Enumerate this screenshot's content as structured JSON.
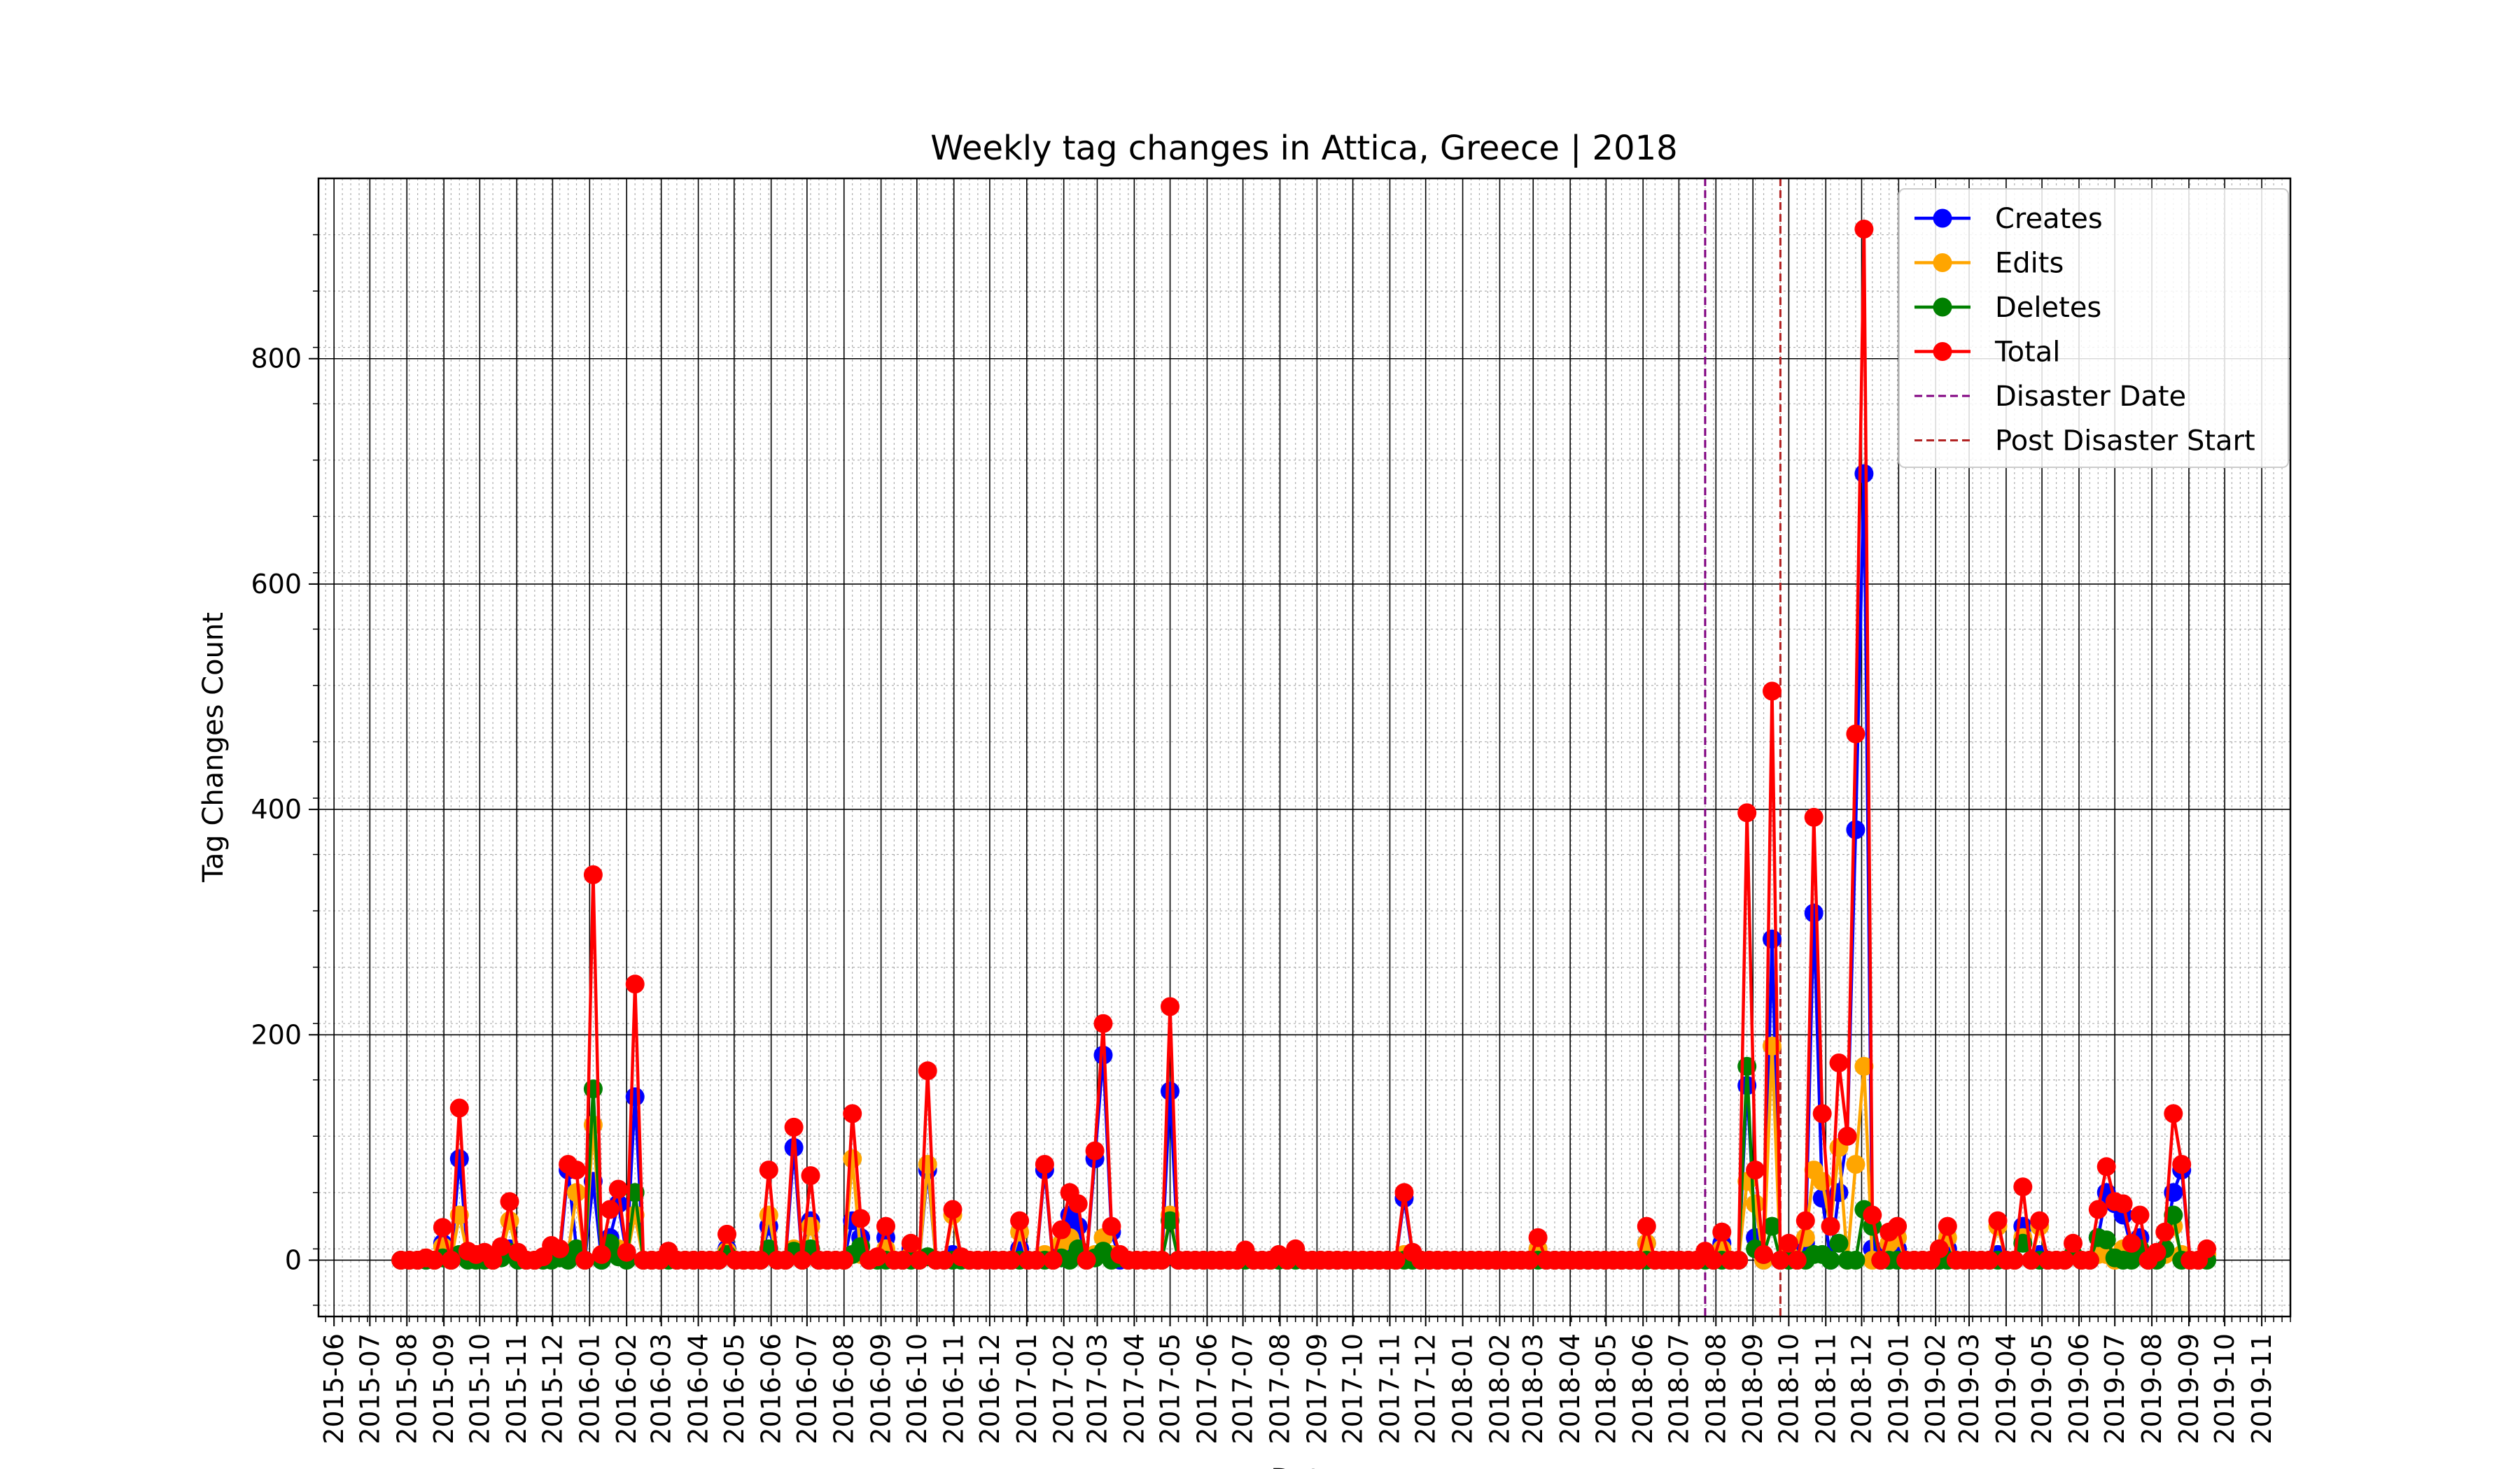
{
  "chart_data": {
    "type": "line",
    "title": "Weekly tag changes in Attica, Greece | 2018",
    "xlabel": "Date",
    "ylabel": "Tag Changes Count",
    "x_range": [
      "2015-05-19",
      "2019-11-25"
    ],
    "ylim": [
      -50,
      960
    ],
    "y_ticks": [
      0,
      200,
      400,
      600,
      800
    ],
    "x_tick_labels": [
      "2015-06",
      "2015-07",
      "2015-08",
      "2015-09",
      "2015-10",
      "2015-11",
      "2015-12",
      "2016-01",
      "2016-02",
      "2016-03",
      "2016-04",
      "2016-05",
      "2016-06",
      "2016-07",
      "2016-08",
      "2016-09",
      "2016-10",
      "2016-11",
      "2016-12",
      "2017-01",
      "2017-02",
      "2017-03",
      "2017-04",
      "2017-05",
      "2017-06",
      "2017-07",
      "2017-08",
      "2017-09",
      "2017-10",
      "2017-11",
      "2017-12",
      "2018-01",
      "2018-02",
      "2018-03",
      "2018-04",
      "2018-05",
      "2018-06",
      "2018-07",
      "2018-08",
      "2018-09",
      "2018-10",
      "2018-11",
      "2018-12",
      "2019-01",
      "2019-02",
      "2019-03",
      "2019-04",
      "2019-05",
      "2019-06",
      "2019-07",
      "2019-08",
      "2019-09",
      "2019-10",
      "2019-11"
    ],
    "grid": true,
    "legend_position": "top-right",
    "vlines": [
      {
        "name": "Disaster Date",
        "x": "2018-07-23",
        "color": "#800080"
      },
      {
        "name": "Post Disaster Start",
        "x": "2018-09-24",
        "color": "#b22222"
      }
    ],
    "series_colors": {
      "Creates": "#0000ff",
      "Edits": "#ffa500",
      "Deletes": "#008000",
      "Total": "#ff0000"
    },
    "series_order": [
      "Creates",
      "Edits",
      "Deletes",
      "Total"
    ],
    "points": [
      [
        "2015-07-27",
        0,
        0,
        0
      ],
      [
        "2015-08-03",
        0,
        0,
        0
      ],
      [
        "2015-08-10",
        0,
        0,
        0
      ],
      [
        "2015-08-17",
        0,
        2,
        0
      ],
      [
        "2015-08-24",
        0,
        0,
        0
      ],
      [
        "2015-08-31",
        15,
        12,
        2
      ],
      [
        "2015-09-07",
        0,
        0,
        0
      ],
      [
        "2015-09-14",
        90,
        40,
        5
      ],
      [
        "2015-09-21",
        5,
        3,
        0
      ],
      [
        "2015-09-28",
        3,
        2,
        0
      ],
      [
        "2015-10-05",
        4,
        3,
        0
      ],
      [
        "2015-10-12",
        0,
        0,
        0
      ],
      [
        "2015-10-19",
        5,
        5,
        2
      ],
      [
        "2015-10-26",
        10,
        35,
        7
      ],
      [
        "2015-11-02",
        5,
        2,
        0
      ],
      [
        "2015-11-09",
        0,
        0,
        0
      ],
      [
        "2015-11-16",
        0,
        0,
        0
      ],
      [
        "2015-11-23",
        2,
        1,
        0
      ],
      [
        "2015-11-30",
        8,
        5,
        0
      ],
      [
        "2015-12-07",
        5,
        3,
        2
      ],
      [
        "2015-12-14",
        80,
        5,
        0
      ],
      [
        "2015-12-21",
        10,
        60,
        10
      ],
      [
        "2015-12-28",
        0,
        0,
        0
      ],
      [
        "2016-01-04",
        70,
        120,
        152
      ],
      [
        "2016-01-11",
        0,
        5,
        0
      ],
      [
        "2016-01-18",
        20,
        10,
        15
      ],
      [
        "2016-01-25",
        50,
        10,
        3
      ],
      [
        "2016-02-01",
        5,
        2,
        0
      ],
      [
        "2016-02-08",
        145,
        40,
        60
      ],
      [
        "2016-02-15",
        0,
        0,
        0
      ],
      [
        "2016-02-22",
        0,
        0,
        0
      ],
      [
        "2016-02-29",
        0,
        0,
        0
      ],
      [
        "2016-03-07",
        5,
        3,
        0
      ],
      [
        "2016-03-14",
        0,
        0,
        0
      ],
      [
        "2016-03-21",
        0,
        0,
        0
      ],
      [
        "2016-03-28",
        0,
        0,
        0
      ],
      [
        "2016-04-04",
        0,
        0,
        0
      ],
      [
        "2016-04-11",
        0,
        0,
        0
      ],
      [
        "2016-04-18",
        0,
        0,
        0
      ],
      [
        "2016-04-25",
        10,
        8,
        5
      ],
      [
        "2016-05-02",
        0,
        0,
        0
      ],
      [
        "2016-05-09",
        0,
        0,
        0
      ],
      [
        "2016-05-16",
        0,
        0,
        0
      ],
      [
        "2016-05-23",
        0,
        0,
        0
      ],
      [
        "2016-05-30",
        30,
        40,
        10
      ],
      [
        "2016-06-06",
        0,
        0,
        0
      ],
      [
        "2016-06-13",
        0,
        0,
        0
      ],
      [
        "2016-06-20",
        100,
        10,
        8
      ],
      [
        "2016-06-27",
        0,
        0,
        0
      ],
      [
        "2016-07-04",
        35,
        30,
        10
      ],
      [
        "2016-07-11",
        0,
        0,
        0
      ],
      [
        "2016-07-18",
        0,
        0,
        0
      ],
      [
        "2016-07-25",
        0,
        0,
        0
      ],
      [
        "2016-08-01",
        0,
        0,
        0
      ],
      [
        "2016-08-08",
        35,
        90,
        5
      ],
      [
        "2016-08-15",
        20,
        5,
        12
      ],
      [
        "2016-08-22",
        0,
        0,
        0
      ],
      [
        "2016-08-29",
        2,
        1,
        0
      ],
      [
        "2016-09-05",
        20,
        10,
        0
      ],
      [
        "2016-09-12",
        0,
        0,
        0
      ],
      [
        "2016-09-19",
        0,
        0,
        0
      ],
      [
        "2016-09-26",
        10,
        5,
        0
      ],
      [
        "2016-10-03",
        0,
        0,
        0
      ],
      [
        "2016-10-10",
        80,
        85,
        3
      ],
      [
        "2016-10-17",
        0,
        0,
        0
      ],
      [
        "2016-10-24",
        0,
        0,
        0
      ],
      [
        "2016-10-31",
        5,
        40,
        0
      ],
      [
        "2016-11-07",
        2,
        1,
        0
      ],
      [
        "2016-11-14",
        0,
        0,
        0
      ],
      [
        "2016-11-21",
        0,
        0,
        0
      ],
      [
        "2016-11-28",
        0,
        0,
        0
      ],
      [
        "2016-12-05",
        0,
        0,
        0
      ],
      [
        "2016-12-12",
        0,
        0,
        0
      ],
      [
        "2016-12-19",
        0,
        0,
        0
      ],
      [
        "2016-12-26",
        10,
        25,
        0
      ],
      [
        "2017-01-02",
        0,
        0,
        0
      ],
      [
        "2017-01-09",
        0,
        0,
        0
      ],
      [
        "2017-01-16",
        80,
        5,
        0
      ],
      [
        "2017-01-23",
        0,
        0,
        0
      ],
      [
        "2017-01-30",
        10,
        15,
        2
      ],
      [
        "2017-02-06",
        40,
        20,
        0
      ],
      [
        "2017-02-13",
        30,
        10,
        10
      ],
      [
        "2017-02-20",
        0,
        0,
        0
      ],
      [
        "2017-02-27",
        90,
        5,
        2
      ],
      [
        "2017-03-06",
        182,
        20,
        8
      ],
      [
        "2017-03-13",
        25,
        5,
        0
      ],
      [
        "2017-03-20",
        0,
        3,
        2
      ],
      [
        "2017-03-27",
        0,
        0,
        0
      ],
      [
        "2017-04-03",
        0,
        0,
        0
      ],
      [
        "2017-04-10",
        0,
        0,
        0
      ],
      [
        "2017-04-17",
        0,
        0,
        0
      ],
      [
        "2017-04-24",
        0,
        0,
        0
      ],
      [
        "2017-05-01",
        150,
        40,
        35
      ],
      [
        "2017-05-08",
        0,
        0,
        0
      ],
      [
        "2017-05-15",
        0,
        0,
        0
      ],
      [
        "2017-05-22",
        0,
        0,
        0
      ],
      [
        "2017-05-29",
        0,
        0,
        0
      ],
      [
        "2017-06-05",
        0,
        0,
        0
      ],
      [
        "2017-06-12",
        0,
        0,
        0
      ],
      [
        "2017-06-19",
        0,
        0,
        0
      ],
      [
        "2017-06-26",
        0,
        0,
        0
      ],
      [
        "2017-07-03",
        5,
        4,
        0
      ],
      [
        "2017-07-10",
        0,
        0,
        0
      ],
      [
        "2017-07-17",
        0,
        0,
        0
      ],
      [
        "2017-07-24",
        0,
        0,
        0
      ],
      [
        "2017-07-31",
        3,
        2,
        0
      ],
      [
        "2017-08-07",
        0,
        0,
        0
      ],
      [
        "2017-08-14",
        5,
        5,
        0
      ],
      [
        "2017-08-21",
        0,
        0,
        0
      ],
      [
        "2017-08-28",
        0,
        0,
        0
      ],
      [
        "2017-09-04",
        0,
        0,
        0
      ],
      [
        "2017-09-11",
        0,
        0,
        0
      ],
      [
        "2017-09-18",
        0,
        0,
        0
      ],
      [
        "2017-09-25",
        0,
        0,
        0
      ],
      [
        "2017-10-02",
        0,
        0,
        0
      ],
      [
        "2017-10-09",
        0,
        0,
        0
      ],
      [
        "2017-10-16",
        0,
        0,
        0
      ],
      [
        "2017-10-23",
        0,
        0,
        0
      ],
      [
        "2017-10-30",
        0,
        0,
        0
      ],
      [
        "2017-11-06",
        0,
        0,
        0
      ],
      [
        "2017-11-13",
        55,
        5,
        0
      ],
      [
        "2017-11-20",
        5,
        2,
        0
      ],
      [
        "2017-11-27",
        0,
        0,
        0
      ],
      [
        "2017-12-04",
        0,
        0,
        0
      ],
      [
        "2017-12-11",
        0,
        0,
        0
      ],
      [
        "2017-12-18",
        0,
        0,
        0
      ],
      [
        "2017-12-25",
        0,
        0,
        0
      ],
      [
        "2018-01-01",
        0,
        0,
        0
      ],
      [
        "2018-01-08",
        0,
        0,
        0
      ],
      [
        "2018-01-15",
        0,
        0,
        0
      ],
      [
        "2018-01-22",
        0,
        0,
        0
      ],
      [
        "2018-01-29",
        0,
        0,
        0
      ],
      [
        "2018-02-05",
        0,
        0,
        0
      ],
      [
        "2018-02-12",
        0,
        0,
        0
      ],
      [
        "2018-02-19",
        0,
        0,
        0
      ],
      [
        "2018-02-26",
        0,
        0,
        0
      ],
      [
        "2018-03-05",
        10,
        10,
        0
      ],
      [
        "2018-03-12",
        0,
        0,
        0
      ],
      [
        "2018-03-19",
        0,
        0,
        0
      ],
      [
        "2018-03-26",
        0,
        0,
        0
      ],
      [
        "2018-04-02",
        0,
        0,
        0
      ],
      [
        "2018-04-09",
        0,
        0,
        0
      ],
      [
        "2018-04-16",
        0,
        0,
        0
      ],
      [
        "2018-04-23",
        0,
        0,
        0
      ],
      [
        "2018-04-30",
        0,
        0,
        0
      ],
      [
        "2018-05-07",
        0,
        0,
        0
      ],
      [
        "2018-05-14",
        0,
        0,
        0
      ],
      [
        "2018-05-21",
        0,
        0,
        0
      ],
      [
        "2018-05-28",
        0,
        0,
        0
      ],
      [
        "2018-06-04",
        15,
        15,
        0
      ],
      [
        "2018-06-11",
        0,
        0,
        0
      ],
      [
        "2018-06-18",
        0,
        0,
        0
      ],
      [
        "2018-06-25",
        0,
        0,
        0
      ],
      [
        "2018-07-02",
        0,
        0,
        0
      ],
      [
        "2018-07-09",
        0,
        0,
        0
      ],
      [
        "2018-07-16",
        0,
        0,
        0
      ],
      [
        "2018-07-23",
        5,
        3,
        0
      ],
      [
        "2018-07-30",
        0,
        0,
        0
      ],
      [
        "2018-08-06",
        15,
        10,
        0
      ],
      [
        "2018-08-13",
        0,
        0,
        0
      ],
      [
        "2018-08-20",
        0,
        0,
        0
      ],
      [
        "2018-08-27",
        155,
        70,
        172
      ],
      [
        "2018-09-03",
        20,
        50,
        10
      ],
      [
        "2018-09-10",
        0,
        0,
        5
      ],
      [
        "2018-09-17",
        285,
        190,
        30
      ],
      [
        "2018-09-24",
        0,
        0,
        0
      ],
      [
        "2018-10-01",
        10,
        5,
        0
      ],
      [
        "2018-10-08",
        0,
        0,
        0
      ],
      [
        "2018-10-15",
        15,
        20,
        0
      ],
      [
        "2018-10-22",
        308,
        80,
        5
      ],
      [
        "2018-10-29",
        55,
        70,
        5
      ],
      [
        "2018-11-05",
        0,
        30,
        0
      ],
      [
        "2018-11-12",
        60,
        100,
        15
      ],
      [
        "2018-11-19",
        110,
        0,
        0
      ],
      [
        "2018-11-26",
        382,
        85,
        0
      ],
      [
        "2018-12-03",
        698,
        172,
        45
      ],
      [
        "2018-12-10",
        10,
        0,
        30
      ],
      [
        "2018-12-17",
        0,
        0,
        0
      ],
      [
        "2018-12-24",
        10,
        15,
        0
      ],
      [
        "2018-12-31",
        10,
        20,
        0
      ],
      [
        "2019-01-07",
        0,
        0,
        0
      ],
      [
        "2019-01-14",
        0,
        0,
        0
      ],
      [
        "2019-01-21",
        0,
        0,
        0
      ],
      [
        "2019-01-28",
        0,
        0,
        0
      ],
      [
        "2019-02-04",
        0,
        10,
        0
      ],
      [
        "2019-02-11",
        10,
        20,
        0
      ],
      [
        "2019-02-18",
        0,
        0,
        0
      ],
      [
        "2019-02-25",
        0,
        0,
        0
      ],
      [
        "2019-03-04",
        0,
        0,
        0
      ],
      [
        "2019-03-11",
        0,
        0,
        0
      ],
      [
        "2019-03-18",
        0,
        0,
        0
      ],
      [
        "2019-03-25",
        5,
        30,
        0
      ],
      [
        "2019-04-01",
        0,
        0,
        0
      ],
      [
        "2019-04-08",
        0,
        0,
        0
      ],
      [
        "2019-04-15",
        30,
        20,
        15
      ],
      [
        "2019-04-22",
        0,
        0,
        0
      ],
      [
        "2019-04-29",
        5,
        30,
        0
      ],
      [
        "2019-05-06",
        0,
        0,
        0
      ],
      [
        "2019-05-13",
        0,
        0,
        0
      ],
      [
        "2019-05-20",
        0,
        0,
        0
      ],
      [
        "2019-05-27",
        5,
        5,
        5
      ],
      [
        "2019-06-03",
        0,
        0,
        0
      ],
      [
        "2019-06-10",
        0,
        0,
        0
      ],
      [
        "2019-06-17",
        20,
        5,
        20
      ],
      [
        "2019-06-24",
        60,
        5,
        18
      ],
      [
        "2019-07-01",
        50,
        0,
        2
      ],
      [
        "2019-07-08",
        40,
        10,
        0
      ],
      [
        "2019-07-15",
        10,
        5,
        0
      ],
      [
        "2019-07-22",
        20,
        10,
        10
      ],
      [
        "2019-07-29",
        0,
        0,
        0
      ],
      [
        "2019-08-05",
        5,
        2,
        0
      ],
      [
        "2019-08-12",
        10,
        5,
        10
      ],
      [
        "2019-08-19",
        60,
        30,
        40
      ],
      [
        "2019-08-26",
        80,
        5,
        0
      ],
      [
        "2019-09-02",
        0,
        0,
        0
      ],
      [
        "2019-09-09",
        0,
        0,
        0
      ],
      [
        "2019-09-16",
        5,
        5,
        0
      ]
    ]
  }
}
